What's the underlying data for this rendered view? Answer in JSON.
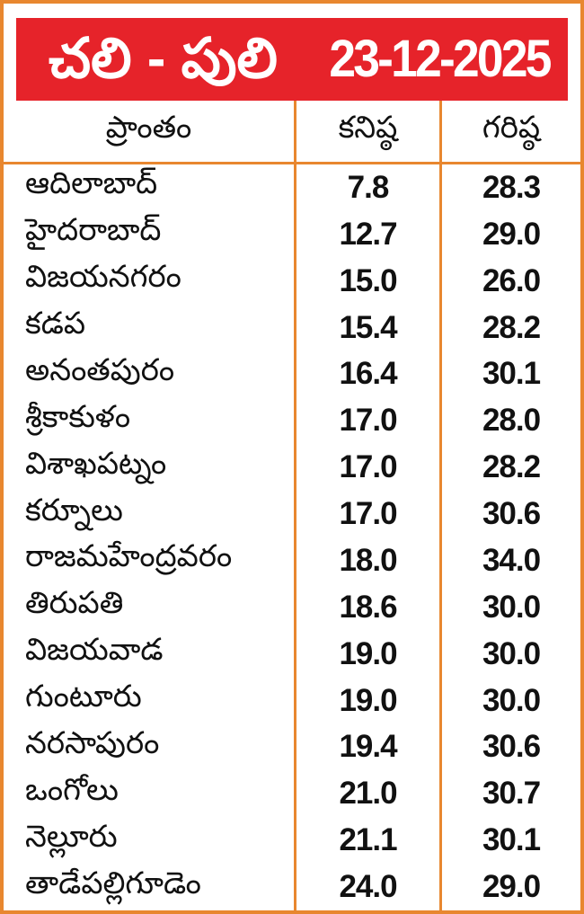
{
  "header": {
    "title": "చలి - పులి",
    "date": "23-12-2025",
    "background_color": "#E6232A",
    "text_color": "#FFFFFF"
  },
  "table": {
    "border_color": "#E8872F",
    "columns": {
      "region": "ప్రాంతం",
      "min": "కనిష్ఠ",
      "max": "గరిష్ఠ"
    },
    "rows": [
      {
        "region": "ఆదిలాబాద్",
        "min": "7.8",
        "max": "28.3"
      },
      {
        "region": "హైదరాబాద్",
        "min": "12.7",
        "max": "29.0"
      },
      {
        "region": "విజయనగరం",
        "min": "15.0",
        "max": "26.0"
      },
      {
        "region": "కడప",
        "min": "15.4",
        "max": "28.2"
      },
      {
        "region": "అనంతపురం",
        "min": "16.4",
        "max": "30.1"
      },
      {
        "region": "శ్రీకాకుళం",
        "min": "17.0",
        "max": "28.0"
      },
      {
        "region": "విశాఖపట్నం",
        "min": "17.0",
        "max": "28.2"
      },
      {
        "region": "కర్నూలు",
        "min": "17.0",
        "max": "30.6"
      },
      {
        "region": "రాజమహేంద్రవరం",
        "min": "18.0",
        "max": "34.0"
      },
      {
        "region": "తిరుపతి",
        "min": "18.6",
        "max": "30.0"
      },
      {
        "region": "విజయవాడ",
        "min": "19.0",
        "max": "30.0"
      },
      {
        "region": "గుంటూరు",
        "min": "19.0",
        "max": "30.0"
      },
      {
        "region": "నరసాపురం",
        "min": "19.4",
        "max": "30.6"
      },
      {
        "region": "ఒంగోలు",
        "min": "21.0",
        "max": "30.7"
      },
      {
        "region": "నెల్లూరు",
        "min": "21.1",
        "max": "30.1"
      },
      {
        "region": "తాడేపల్లిగూడెం",
        "min": "24.0",
        "max": "29.0"
      }
    ]
  },
  "chart_data": {
    "type": "table",
    "title": "చలి - పులి 23-12-2025",
    "columns": [
      "ప్రాంతం",
      "కనిష్ఠ",
      "గరిష్ఠ"
    ],
    "rows": [
      [
        "ఆదిలాబాద్",
        7.8,
        28.3
      ],
      [
        "హైదరాబాద్",
        12.7,
        29.0
      ],
      [
        "విజయనగరం",
        15.0,
        26.0
      ],
      [
        "కడప",
        15.4,
        28.2
      ],
      [
        "అనంతపురం",
        16.4,
        30.1
      ],
      [
        "శ్రీకాకుళం",
        17.0,
        28.0
      ],
      [
        "విశాఖపట్నం",
        17.0,
        28.2
      ],
      [
        "కర్నూలు",
        17.0,
        30.6
      ],
      [
        "రాజమహేంద్రవరం",
        18.0,
        34.0
      ],
      [
        "తిరుపతి",
        18.6,
        30.0
      ],
      [
        "విజయవాడ",
        19.0,
        30.0
      ],
      [
        "గుంటూరు",
        19.0,
        30.0
      ],
      [
        "నరసాపురం",
        19.4,
        30.6
      ],
      [
        "ఒంగోలు",
        21.0,
        30.7
      ],
      [
        "నెల్లూరు",
        21.1,
        30.1
      ],
      [
        "తాడేపల్లిగూడెం",
        24.0,
        29.0
      ]
    ]
  }
}
